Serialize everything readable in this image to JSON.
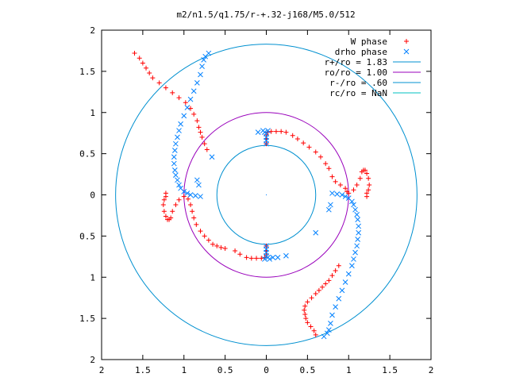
{
  "colors": {
    "w_phase": "#ff0000",
    "drho_phase": "#0080ff",
    "r_plus": "#0090d0",
    "ro": "#9900bb",
    "r_minus": "#0090d0",
    "rc": "#00c0c0",
    "frame": "#000000",
    "background": "#ffffff"
  },
  "chart_data": {
    "type": "scatter",
    "title": "m2/n1.5/q1.75/r-+.32-j168/M5.0/512",
    "xlabel": "",
    "ylabel": "",
    "xlim": [
      -2,
      2
    ],
    "ylim": [
      -2,
      2
    ],
    "grid": false,
    "legend_position": "top-right",
    "x_ticks": [
      "2",
      "1.5",
      "1",
      "0.5",
      "0",
      "0.5",
      "1",
      "1.5",
      "2"
    ],
    "y_ticks": [
      "2",
      "1.5",
      "1",
      "0.5",
      "0",
      "0.5",
      "1",
      "1.5",
      "2"
    ],
    "legend": [
      {
        "label": "W phase",
        "marker": "+",
        "color_key": "w_phase"
      },
      {
        "label": "drho phase",
        "marker": "x",
        "color_key": "drho_phase"
      },
      {
        "label": "r+/ro = 1.83",
        "marker": "line",
        "color_key": "r_plus"
      },
      {
        "label": "ro/ro = 1.00",
        "marker": "line",
        "color_key": "ro"
      },
      {
        "label": "r-/ro = .60",
        "marker": "line",
        "color_key": "r_minus"
      },
      {
        "label": "rc/ro = NaN",
        "marker": "line",
        "color_key": "rc"
      }
    ],
    "circles": [
      {
        "name": "r+/ro",
        "radius": 1.83,
        "color_key": "r_plus"
      },
      {
        "name": "ro/ro",
        "radius": 1.0,
        "color_key": "ro"
      },
      {
        "name": "r-/ro",
        "radius": 0.6,
        "color_key": "r_minus"
      }
    ],
    "series": [
      {
        "name": "W phase",
        "marker": "+",
        "color_key": "w_phase",
        "points": [
          [
            0.0,
            0.62
          ],
          [
            0.0,
            0.68
          ],
          [
            0.0,
            0.73
          ],
          [
            0.02,
            0.76
          ],
          [
            0.06,
            0.77
          ],
          [
            0.12,
            0.77
          ],
          [
            0.18,
            0.77
          ],
          [
            0.24,
            0.76
          ],
          [
            0.32,
            0.72
          ],
          [
            0.38,
            0.68
          ],
          [
            0.45,
            0.63
          ],
          [
            0.52,
            0.58
          ],
          [
            0.6,
            0.52
          ],
          [
            0.66,
            0.46
          ],
          [
            0.72,
            0.38
          ],
          [
            0.76,
            0.32
          ],
          [
            0.8,
            0.22
          ],
          [
            0.84,
            0.16
          ],
          [
            0.9,
            0.12
          ],
          [
            0.96,
            0.08
          ],
          [
            0.98,
            0.04
          ],
          [
            1.0,
            0.02
          ],
          [
            1.06,
            0.06
          ],
          [
            1.1,
            0.12
          ],
          [
            1.14,
            0.2
          ],
          [
            1.16,
            0.28
          ],
          [
            1.18,
            0.3
          ],
          [
            1.2,
            0.3
          ],
          [
            1.22,
            0.26
          ],
          [
            1.24,
            0.2
          ],
          [
            1.25,
            0.12
          ],
          [
            1.24,
            0.06
          ],
          [
            1.22,
            0.02
          ],
          [
            1.22,
            -0.02
          ],
          [
            -1.6,
            1.72
          ],
          [
            -1.54,
            1.66
          ],
          [
            -1.5,
            1.6
          ],
          [
            -1.46,
            1.54
          ],
          [
            -1.42,
            1.48
          ],
          [
            -1.38,
            1.42
          ],
          [
            -1.3,
            1.36
          ],
          [
            -1.22,
            1.3
          ],
          [
            -1.14,
            1.24
          ],
          [
            -1.06,
            1.18
          ],
          [
            -0.98,
            1.12
          ],
          [
            -0.92,
            1.05
          ],
          [
            -0.88,
            0.98
          ],
          [
            -0.84,
            0.9
          ],
          [
            -0.82,
            0.82
          ],
          [
            -0.8,
            0.76
          ],
          [
            -0.78,
            0.7
          ],
          [
            -0.75,
            0.62
          ],
          [
            -0.72,
            0.55
          ],
          [
            -0.5,
            -0.65
          ],
          [
            -0.55,
            -0.64
          ],
          [
            -0.6,
            -0.62
          ],
          [
            -0.65,
            -0.6
          ],
          [
            -0.7,
            -0.55
          ],
          [
            -0.75,
            -0.5
          ],
          [
            -0.8,
            -0.44
          ],
          [
            -0.85,
            -0.36
          ],
          [
            -0.88,
            -0.28
          ],
          [
            -0.9,
            -0.2
          ],
          [
            -0.92,
            -0.12
          ],
          [
            -0.95,
            -0.05
          ],
          [
            -1.0,
            -0.02
          ],
          [
            -1.06,
            -0.06
          ],
          [
            -1.1,
            -0.12
          ],
          [
            -1.14,
            -0.2
          ],
          [
            -1.16,
            -0.28
          ],
          [
            -1.18,
            -0.3
          ],
          [
            -1.2,
            -0.3
          ],
          [
            -1.22,
            -0.26
          ],
          [
            -1.24,
            -0.2
          ],
          [
            -1.25,
            -0.12
          ],
          [
            -1.24,
            -0.06
          ],
          [
            -1.22,
            -0.02
          ],
          [
            -1.22,
            0.02
          ],
          [
            0.6,
            -1.7
          ],
          [
            0.58,
            -1.65
          ],
          [
            0.54,
            -1.6
          ],
          [
            0.5,
            -1.55
          ],
          [
            0.48,
            -1.5
          ],
          [
            0.47,
            -1.45
          ],
          [
            0.46,
            -1.4
          ],
          [
            0.47,
            -1.35
          ],
          [
            0.5,
            -1.3
          ],
          [
            0.55,
            -1.25
          ],
          [
            0.6,
            -1.2
          ],
          [
            0.64,
            -1.16
          ],
          [
            0.68,
            -1.12
          ],
          [
            0.72,
            -1.08
          ],
          [
            0.76,
            -1.04
          ],
          [
            0.8,
            -0.98
          ],
          [
            0.84,
            -0.92
          ],
          [
            0.88,
            -0.86
          ],
          [
            0.0,
            -0.62
          ],
          [
            0.0,
            -0.68
          ],
          [
            0.0,
            -0.73
          ],
          [
            -0.02,
            -0.76
          ],
          [
            -0.06,
            -0.77
          ],
          [
            -0.12,
            -0.77
          ],
          [
            -0.18,
            -0.77
          ],
          [
            -0.24,
            -0.76
          ],
          [
            -0.32,
            -0.72
          ],
          [
            -0.38,
            -0.68
          ]
        ]
      },
      {
        "name": "drho phase",
        "marker": "x",
        "color_key": "drho_phase",
        "points": [
          [
            0.0,
            0.62
          ],
          [
            0.0,
            0.66
          ],
          [
            0.0,
            0.7
          ],
          [
            0.0,
            0.74
          ],
          [
            -0.02,
            0.76
          ],
          [
            -0.04,
            0.78
          ],
          [
            0.02,
            0.78
          ],
          [
            0.0,
            -0.62
          ],
          [
            0.0,
            -0.66
          ],
          [
            0.0,
            -0.7
          ],
          [
            0.0,
            -0.74
          ],
          [
            0.02,
            -0.76
          ],
          [
            0.04,
            -0.78
          ],
          [
            -0.02,
            -0.78
          ],
          [
            0.08,
            -0.76
          ],
          [
            0.14,
            -0.76
          ],
          [
            0.24,
            -0.74
          ],
          [
            0.8,
            0.02
          ],
          [
            0.86,
            0.01
          ],
          [
            0.92,
            0.0
          ],
          [
            0.96,
            -0.02
          ],
          [
            1.0,
            -0.04
          ],
          [
            1.04,
            -0.08
          ],
          [
            1.06,
            -0.12
          ],
          [
            1.08,
            -0.18
          ],
          [
            1.1,
            -0.24
          ],
          [
            1.11,
            -0.3
          ],
          [
            1.12,
            -0.38
          ],
          [
            1.12,
            -0.46
          ],
          [
            1.11,
            -0.54
          ],
          [
            1.1,
            -0.62
          ],
          [
            1.08,
            -0.7
          ],
          [
            1.06,
            -0.78
          ],
          [
            1.04,
            -0.86
          ],
          [
            1.0,
            -0.96
          ],
          [
            0.96,
            -1.06
          ],
          [
            0.92,
            -1.16
          ],
          [
            0.88,
            -1.26
          ],
          [
            0.84,
            -1.36
          ],
          [
            0.8,
            -1.46
          ],
          [
            0.78,
            -1.56
          ],
          [
            0.76,
            -1.64
          ],
          [
            0.74,
            -1.68
          ],
          [
            0.7,
            -1.72
          ],
          [
            0.78,
            -0.12
          ],
          [
            0.76,
            -0.18
          ],
          [
            0.6,
            -0.46
          ],
          [
            -0.8,
            -0.02
          ],
          [
            -0.86,
            -0.01
          ],
          [
            -0.92,
            0.0
          ],
          [
            -0.96,
            0.02
          ],
          [
            -1.0,
            0.04
          ],
          [
            -1.04,
            0.08
          ],
          [
            -1.06,
            0.12
          ],
          [
            -1.08,
            0.18
          ],
          [
            -1.1,
            0.24
          ],
          [
            -1.11,
            0.3
          ],
          [
            -1.12,
            0.38
          ],
          [
            -1.12,
            0.46
          ],
          [
            -1.11,
            0.54
          ],
          [
            -1.1,
            0.62
          ],
          [
            -1.08,
            0.7
          ],
          [
            -1.06,
            0.78
          ],
          [
            -1.04,
            0.86
          ],
          [
            -1.0,
            0.96
          ],
          [
            -0.96,
            1.06
          ],
          [
            -0.92,
            1.16
          ],
          [
            -0.88,
            1.26
          ],
          [
            -0.84,
            1.36
          ],
          [
            -0.8,
            1.46
          ],
          [
            -0.78,
            1.56
          ],
          [
            -0.76,
            1.64
          ],
          [
            -0.74,
            1.68
          ],
          [
            -0.7,
            1.72
          ],
          [
            -0.66,
            0.46
          ],
          [
            -0.82,
            0.12
          ],
          [
            -0.84,
            0.18
          ],
          [
            -0.1,
            0.76
          ]
        ]
      }
    ]
  }
}
